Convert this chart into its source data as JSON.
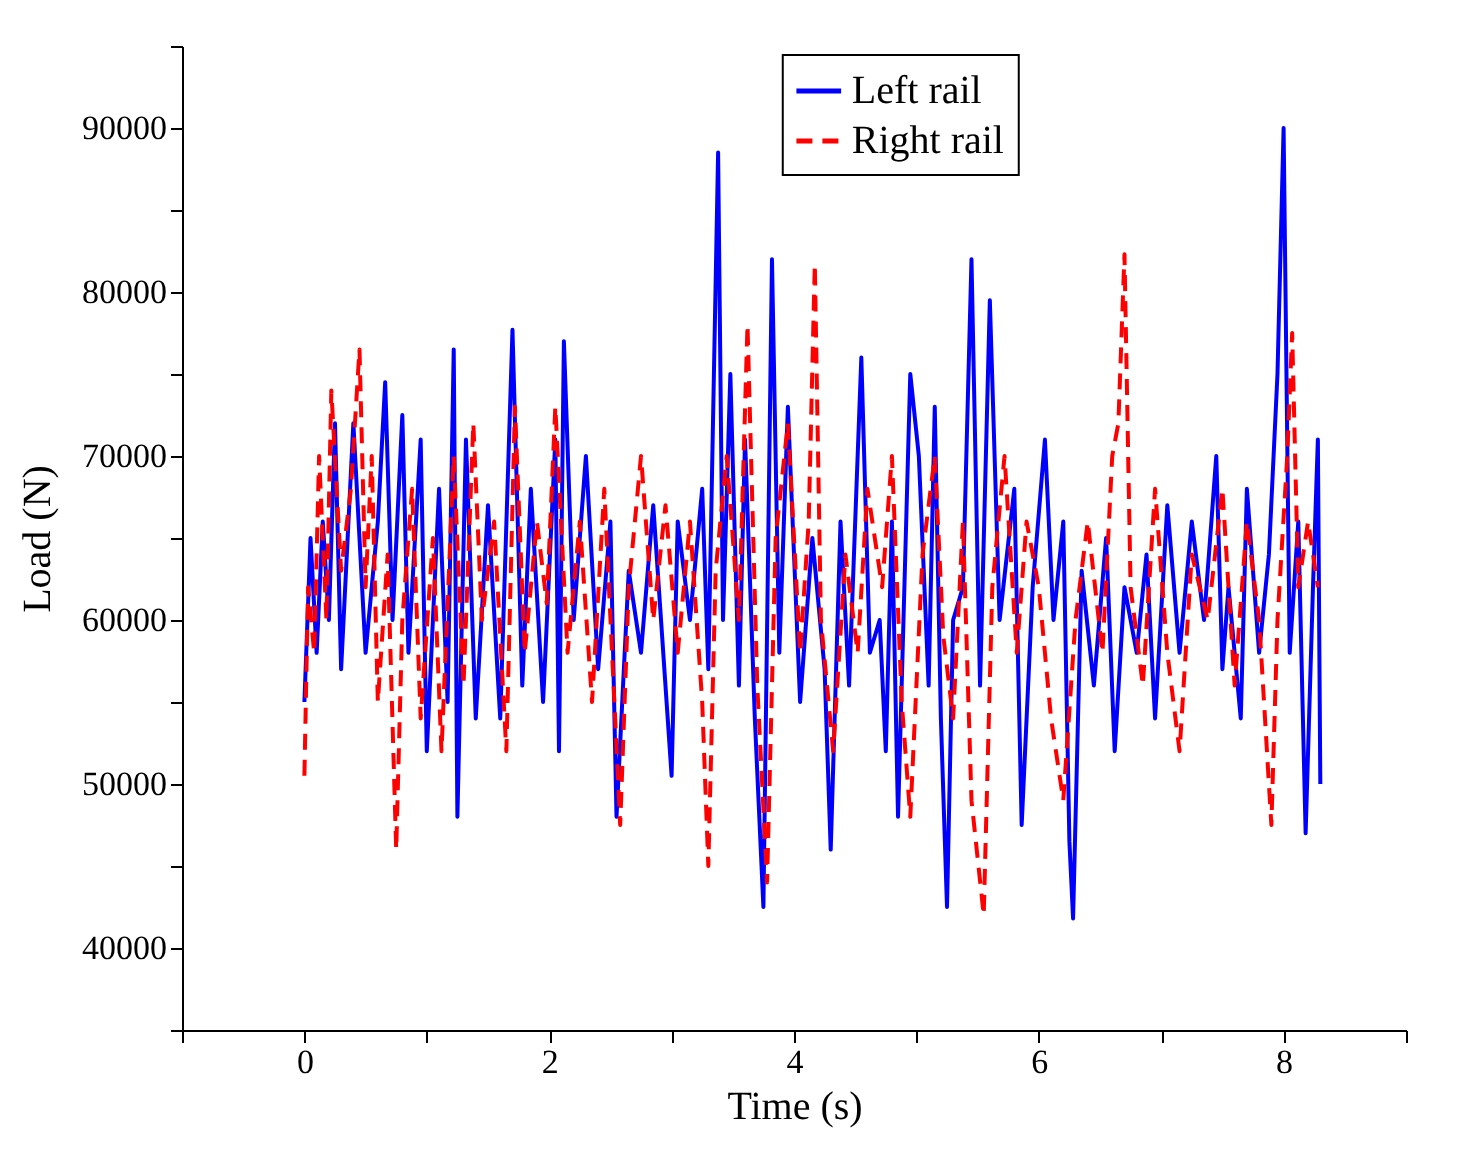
{
  "chart_data": {
    "type": "line",
    "xlabel": "Time (s)",
    "ylabel": "Load (N)",
    "xlim": [
      -1,
      9
    ],
    "ylim": [
      35000,
      95000
    ],
    "xticks": [
      {
        "value": -1,
        "label": null
      },
      0,
      {
        "value": 1,
        "label": null
      },
      2,
      {
        "value": 3,
        "label": null
      },
      4,
      {
        "value": 5,
        "label": null
      },
      6,
      {
        "value": 7,
        "label": null
      },
      8,
      {
        "value": 9,
        "label": null
      }
    ],
    "yticks": [
      {
        "value": 35000,
        "label": null
      },
      40000,
      {
        "value": 45000,
        "label": null
      },
      50000,
      {
        "value": 55000,
        "label": null
      },
      60000,
      {
        "value": 65000,
        "label": null
      },
      70000,
      {
        "value": 75000,
        "label": null
      },
      80000,
      {
        "value": 85000,
        "label": null
      },
      90000,
      {
        "value": 95000,
        "label": null
      }
    ],
    "grid": false,
    "legend": "top right",
    "marker": "none",
    "series": [
      {
        "name": "Left rail",
        "color": "#0000ff",
        "line_style": "solid",
        "x": [
          0,
          0.05,
          0.1,
          0.15,
          0.2,
          0.25,
          0.3,
          0.4,
          0.5,
          0.6,
          0.66,
          0.72,
          0.8,
          0.85,
          0.95,
          1.0,
          1.1,
          1.17,
          1.22,
          1.25,
          1.32,
          1.4,
          1.5,
          1.6,
          1.7,
          1.78,
          1.85,
          1.95,
          2.05,
          2.08,
          2.12,
          2.2,
          2.3,
          2.4,
          2.5,
          2.55,
          2.65,
          2.75,
          2.85,
          3.0,
          3.05,
          3.15,
          3.25,
          3.3,
          3.38,
          3.42,
          3.48,
          3.55,
          3.6,
          3.68,
          3.75,
          3.82,
          3.88,
          3.95,
          4.05,
          4.15,
          4.25,
          4.3,
          4.38,
          4.45,
          4.55,
          4.62,
          4.7,
          4.75,
          4.8,
          4.85,
          4.95,
          5.02,
          5.1,
          5.15,
          5.2,
          5.25,
          5.3,
          5.38,
          5.45,
          5.52,
          5.6,
          5.68,
          5.8,
          5.86,
          5.95,
          6.05,
          6.12,
          6.2,
          6.25,
          6.28,
          6.35,
          6.45,
          6.55,
          6.62,
          6.7,
          6.8,
          6.88,
          6.95,
          7.05,
          7.15,
          7.25,
          7.35,
          7.45,
          7.5,
          7.55,
          7.65,
          7.7,
          7.8,
          7.88,
          7.95,
          8.0,
          8.05,
          8.12,
          8.18,
          8.24,
          8.28,
          8.3
        ],
        "values": [
          55000,
          65000,
          58000,
          66000,
          60000,
          72000,
          57000,
          72000,
          58000,
          66000,
          74500,
          60000,
          72500,
          58000,
          71000,
          52000,
          68000,
          55000,
          76500,
          48000,
          71000,
          54000,
          67000,
          54000,
          77700,
          56000,
          68000,
          55000,
          71000,
          52000,
          77000,
          60000,
          70000,
          57000,
          66000,
          48000,
          63000,
          58000,
          67000,
          50500,
          66000,
          60000,
          68000,
          57000,
          88500,
          60000,
          75000,
          56000,
          71000,
          54000,
          42500,
          82000,
          58000,
          73000,
          55000,
          65000,
          57000,
          46000,
          66000,
          56000,
          76000,
          58000,
          60000,
          52000,
          66000,
          48000,
          75000,
          70000,
          56000,
          73000,
          54000,
          42500,
          60000,
          62000,
          82000,
          56000,
          79500,
          60000,
          68000,
          47500,
          62000,
          71000,
          60000,
          66000,
          46500,
          41800,
          63000,
          56000,
          65000,
          52000,
          62000,
          58000,
          64000,
          54000,
          67000,
          58000,
          66000,
          60000,
          70000,
          57000,
          62000,
          54000,
          68000,
          58000,
          64000,
          75000,
          90000,
          58000,
          66000,
          47000,
          62000,
          71000,
          50000
        ]
      },
      {
        "name": "Right rail",
        "color": "#ff0000",
        "line_style": "dashed",
        "x": [
          0,
          0.03,
          0.08,
          0.12,
          0.18,
          0.22,
          0.3,
          0.38,
          0.45,
          0.5,
          0.55,
          0.6,
          0.68,
          0.75,
          0.8,
          0.88,
          0.95,
          1.05,
          1.12,
          1.22,
          1.3,
          1.38,
          1.45,
          1.55,
          1.65,
          1.72,
          1.8,
          1.9,
          1.98,
          2.05,
          2.15,
          2.25,
          2.35,
          2.45,
          2.58,
          2.65,
          2.75,
          2.85,
          2.95,
          3.05,
          3.15,
          3.25,
          3.3,
          3.36,
          3.45,
          3.55,
          3.62,
          3.7,
          3.78,
          3.85,
          3.95,
          4.05,
          4.12,
          4.17,
          4.22,
          4.32,
          4.42,
          4.52,
          4.6,
          4.72,
          4.8,
          4.88,
          4.95,
          5.05,
          5.15,
          5.22,
          5.3,
          5.38,
          5.45,
          5.55,
          5.62,
          5.72,
          5.82,
          5.9,
          6.0,
          6.1,
          6.2,
          6.3,
          6.4,
          6.52,
          6.6,
          6.65,
          6.7,
          6.75,
          6.85,
          6.95,
          7.05,
          7.15,
          7.25,
          7.38,
          7.5,
          7.6,
          7.7,
          7.8,
          7.9,
          7.95,
          8.03,
          8.07,
          8.12,
          8.2,
          8.28
        ],
        "values": [
          50500,
          62000,
          58000,
          70000,
          60000,
          74000,
          63000,
          68000,
          76500,
          62000,
          70000,
          55000,
          64000,
          46000,
          60000,
          68000,
          54000,
          65000,
          52000,
          70000,
          56000,
          72000,
          60000,
          66000,
          52000,
          73000,
          58000,
          66000,
          61000,
          73000,
          58000,
          66000,
          55000,
          68000,
          47500,
          62000,
          70000,
          60000,
          67000,
          58000,
          66000,
          55000,
          45000,
          63000,
          70000,
          60000,
          78000,
          56000,
          44000,
          65000,
          72000,
          58000,
          66000,
          81700,
          60000,
          52000,
          64000,
          58000,
          68000,
          62000,
          70000,
          55000,
          48000,
          64000,
          70000,
          59000,
          54000,
          66000,
          49000,
          42000,
          62000,
          70000,
          58000,
          66000,
          62000,
          54000,
          49000,
          60000,
          66000,
          58000,
          70000,
          72000,
          82300,
          62000,
          56000,
          68000,
          58000,
          52000,
          64000,
          60000,
          68000,
          56000,
          66000,
          60000,
          47500,
          60000,
          70000,
          77500,
          62000,
          66000,
          62000
        ]
      }
    ]
  }
}
